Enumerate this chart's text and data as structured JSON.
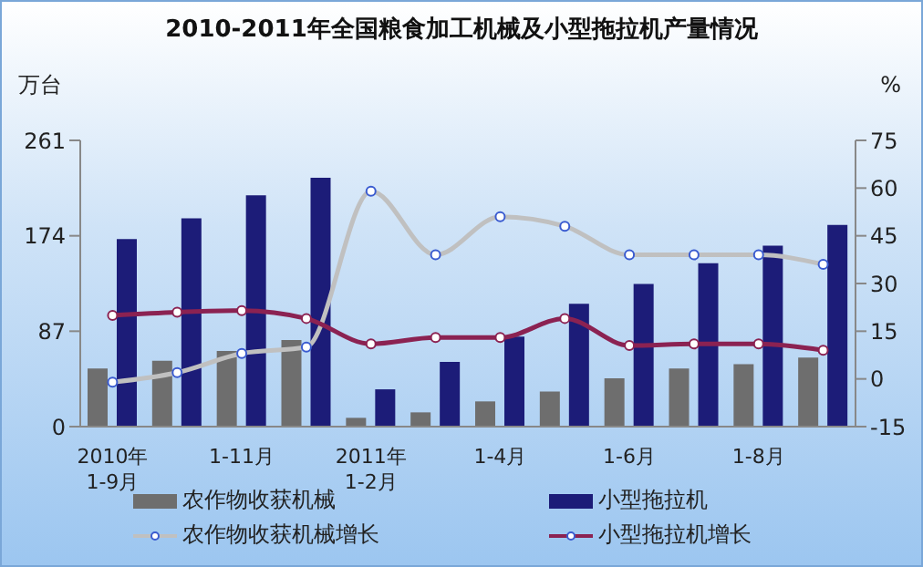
{
  "chart_data": {
    "type": "bar",
    "title": "2010-2011年全国粮食加工机械及小型拖拉机产量情况",
    "ylabel": "万台",
    "y2label": "%",
    "categories": [
      "2010年\n1-9月",
      null,
      "1-11月",
      null,
      "2011年\n1-2月",
      null,
      "1-4月",
      null,
      "1-6月",
      null,
      "1-8月",
      null
    ],
    "series": [
      {
        "name": "农作物收获机械",
        "color": "#6e6e6e",
        "values": [
          53,
          60,
          69,
          79,
          8,
          13,
          23,
          32,
          44,
          53,
          57,
          63
        ]
      },
      {
        "name": "小型拖拉机",
        "color": "#1c1c78",
        "values": [
          171,
          190,
          211,
          227,
          34,
          59,
          82,
          112,
          130,
          149,
          165,
          184
        ]
      },
      {
        "name": "农作物收获机械增长",
        "type": "line",
        "axis": "y2",
        "color": "#c0c0c0",
        "marker": "circle",
        "values": [
          -1,
          2,
          8,
          10,
          59,
          39,
          51,
          48,
          39,
          39,
          39,
          36
        ]
      },
      {
        "name": "小型拖拉机增长",
        "type": "line",
        "axis": "y2",
        "color": "#8b2252",
        "marker": "circle",
        "values": [
          20,
          21,
          21.5,
          19,
          11,
          13,
          13,
          19,
          10.5,
          11,
          11,
          9
        ]
      }
    ],
    "ylim": [
      0,
      261
    ],
    "yticks": [
      0,
      87,
      174,
      261
    ],
    "y2lim": [
      -15,
      75
    ],
    "y2ticks": [
      -15,
      0,
      15,
      30,
      45,
      60,
      75
    ],
    "legend": "bottom"
  }
}
